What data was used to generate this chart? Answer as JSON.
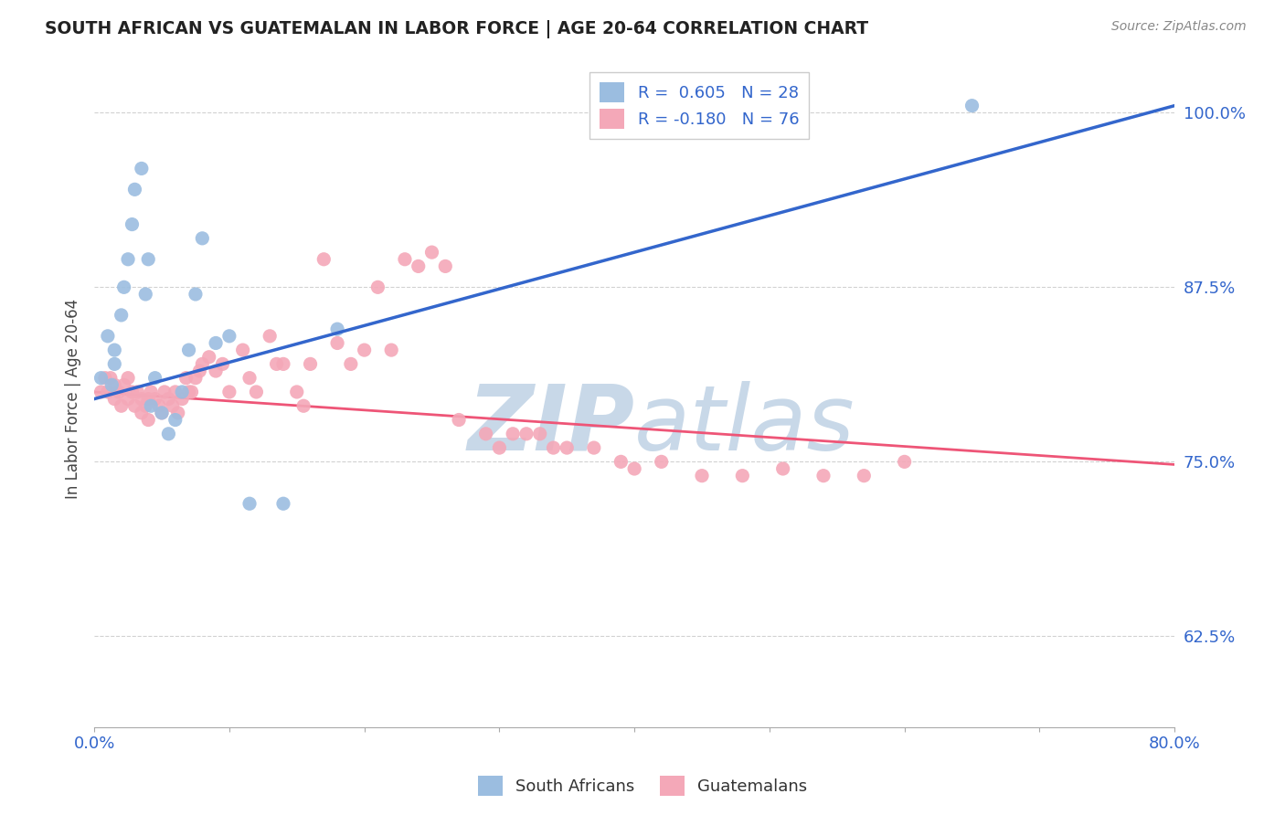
{
  "title": "SOUTH AFRICAN VS GUATEMALAN IN LABOR FORCE | AGE 20-64 CORRELATION CHART",
  "source": "Source: ZipAtlas.com",
  "ylabel": "In Labor Force | Age 20-64",
  "xlim": [
    0.0,
    0.8
  ],
  "ylim": [
    0.56,
    1.03
  ],
  "yticks": [
    0.625,
    0.75,
    0.875,
    1.0
  ],
  "ytick_labels": [
    "62.5%",
    "75.0%",
    "87.5%",
    "100.0%"
  ],
  "xticks": [
    0.0,
    0.1,
    0.2,
    0.3,
    0.4,
    0.5,
    0.6,
    0.7,
    0.8
  ],
  "xtick_labels": [
    "0.0%",
    "",
    "",
    "",
    "",
    "",
    "",
    "",
    "80.0%"
  ],
  "blue_r": 0.605,
  "blue_n": 28,
  "pink_r": -0.18,
  "pink_n": 76,
  "blue_color": "#9BBDE0",
  "pink_color": "#F4A8B8",
  "trend_blue_color": "#3366CC",
  "trend_pink_color": "#EE5577",
  "title_color": "#222222",
  "axis_label_color": "#444444",
  "tick_color": "#3366CC",
  "legend_r_color": "#3366CC",
  "watermark_color": "#C8D8E8",
  "blue_trend_x0": 0.0,
  "blue_trend_y0": 0.795,
  "blue_trend_x1": 0.8,
  "blue_trend_y1": 1.005,
  "pink_trend_x0": 0.0,
  "pink_trend_y0": 0.8,
  "pink_trend_x1": 0.8,
  "pink_trend_y1": 0.748,
  "blue_scatter_x": [
    0.005,
    0.01,
    0.013,
    0.015,
    0.015,
    0.02,
    0.022,
    0.025,
    0.028,
    0.03,
    0.035,
    0.038,
    0.04,
    0.042,
    0.045,
    0.05,
    0.055,
    0.06,
    0.065,
    0.07,
    0.075,
    0.08,
    0.09,
    0.1,
    0.115,
    0.14,
    0.18,
    0.65
  ],
  "blue_scatter_y": [
    0.81,
    0.84,
    0.805,
    0.82,
    0.83,
    0.855,
    0.875,
    0.895,
    0.92,
    0.945,
    0.96,
    0.87,
    0.895,
    0.79,
    0.81,
    0.785,
    0.77,
    0.78,
    0.8,
    0.83,
    0.87,
    0.91,
    0.835,
    0.84,
    0.72,
    0.72,
    0.845,
    1.005
  ],
  "pink_scatter_x": [
    0.005,
    0.008,
    0.01,
    0.012,
    0.015,
    0.015,
    0.018,
    0.02,
    0.022,
    0.025,
    0.025,
    0.028,
    0.03,
    0.032,
    0.035,
    0.035,
    0.038,
    0.04,
    0.04,
    0.042,
    0.045,
    0.048,
    0.05,
    0.052,
    0.055,
    0.058,
    0.06,
    0.062,
    0.065,
    0.068,
    0.07,
    0.072,
    0.075,
    0.078,
    0.08,
    0.085,
    0.09,
    0.095,
    0.1,
    0.11,
    0.115,
    0.12,
    0.13,
    0.135,
    0.14,
    0.15,
    0.155,
    0.16,
    0.17,
    0.18,
    0.19,
    0.2,
    0.21,
    0.22,
    0.23,
    0.24,
    0.25,
    0.26,
    0.27,
    0.29,
    0.3,
    0.31,
    0.32,
    0.33,
    0.34,
    0.35,
    0.37,
    0.39,
    0.4,
    0.42,
    0.45,
    0.48,
    0.51,
    0.54,
    0.57,
    0.6
  ],
  "pink_scatter_y": [
    0.8,
    0.81,
    0.8,
    0.81,
    0.795,
    0.805,
    0.8,
    0.79,
    0.805,
    0.795,
    0.81,
    0.8,
    0.79,
    0.8,
    0.785,
    0.795,
    0.79,
    0.78,
    0.795,
    0.8,
    0.795,
    0.79,
    0.785,
    0.8,
    0.795,
    0.79,
    0.8,
    0.785,
    0.795,
    0.81,
    0.8,
    0.8,
    0.81,
    0.815,
    0.82,
    0.825,
    0.815,
    0.82,
    0.8,
    0.83,
    0.81,
    0.8,
    0.84,
    0.82,
    0.82,
    0.8,
    0.79,
    0.82,
    0.895,
    0.835,
    0.82,
    0.83,
    0.875,
    0.83,
    0.895,
    0.89,
    0.9,
    0.89,
    0.78,
    0.77,
    0.76,
    0.77,
    0.77,
    0.77,
    0.76,
    0.76,
    0.76,
    0.75,
    0.745,
    0.75,
    0.74,
    0.74,
    0.745,
    0.74,
    0.74,
    0.75
  ]
}
